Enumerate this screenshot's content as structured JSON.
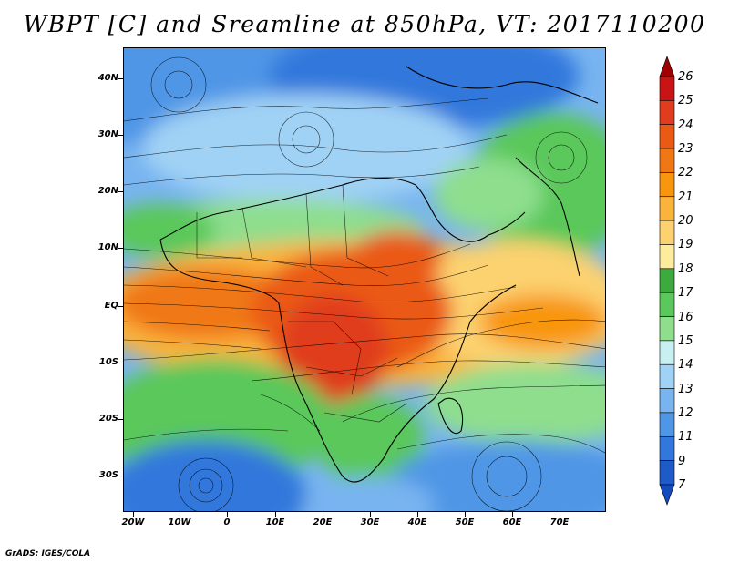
{
  "title": "WBPT [C] and Sreamline at 850hPa, VT: 2017110200",
  "credit": "GrADS: IGES/COLA",
  "map": {
    "lat_labels": [
      "40N",
      "30N",
      "20N",
      "10N",
      "EQ",
      "10S",
      "20S",
      "30S"
    ],
    "lon_labels": [
      "20W",
      "10W",
      "0",
      "10E",
      "20E",
      "30E",
      "40E",
      "50E",
      "60E",
      "70E"
    ]
  },
  "colorbar": {
    "labels": [
      "26",
      "25",
      "24",
      "23",
      "22",
      "21",
      "20",
      "19",
      "18",
      "17",
      "16",
      "15",
      "14",
      "13",
      "12",
      "11",
      "9",
      "7"
    ],
    "colors": [
      "#a00000",
      "#c81414",
      "#e03c1e",
      "#ea5a14",
      "#f07814",
      "#f8960f",
      "#fab43c",
      "#fcd270",
      "#fcec9c",
      "#3caa3c",
      "#5ac85a",
      "#8ede8e",
      "#c8f0f0",
      "#a0d2f5",
      "#78b4f0",
      "#5096e6",
      "#3278dc",
      "#1e5ac8",
      "#144bbe"
    ]
  }
}
